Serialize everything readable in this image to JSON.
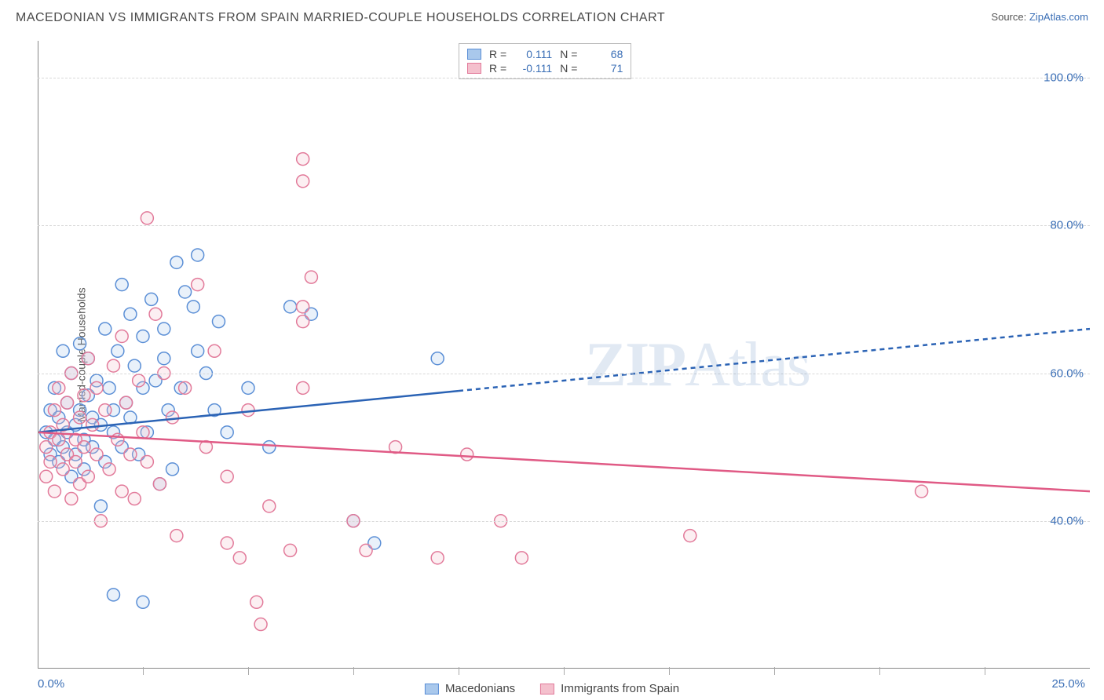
{
  "title": "MACEDONIAN VS IMMIGRANTS FROM SPAIN MARRIED-COUPLE HOUSEHOLDS CORRELATION CHART",
  "source_label": "Source:",
  "source_link": "ZipAtlas.com",
  "ylabel": "Married-couple Households",
  "watermark_bold": "ZIP",
  "watermark_light": "Atlas",
  "chart": {
    "type": "scatter",
    "xlim": [
      0,
      25
    ],
    "ylim": [
      20,
      105
    ],
    "x_ticks": [
      0,
      25
    ],
    "x_ticks_minor": [
      2.5,
      5,
      7.5,
      10,
      12.5,
      15,
      17.5,
      20,
      22.5
    ],
    "y_gridlines": [
      40,
      60,
      80,
      100
    ],
    "x_axis_suffix": "%",
    "y_axis_suffix": "%",
    "x_tick_labels": [
      "0.0%",
      "25.0%"
    ],
    "y_tick_labels": [
      "40.0%",
      "60.0%",
      "80.0%",
      "100.0%"
    ],
    "background_color": "#ffffff",
    "grid_color": "#d8d8d8",
    "axis_color": "#888888",
    "label_color": "#3b6fb6",
    "marker_radius": 8,
    "marker_stroke_width": 1.5,
    "marker_fill_opacity": 0.25,
    "trend_line_width": 2.5,
    "trend_dash_split_x": 10
  },
  "series": [
    {
      "name": "Macedonians",
      "color_fill": "#a9c8ec",
      "color_stroke": "#5b8fd6",
      "trend_color": "#2b63b5",
      "R": "0.111",
      "N": "68",
      "trend": {
        "x1": 0,
        "y1": 52,
        "x2": 25,
        "y2": 66
      },
      "points": [
        [
          0.2,
          52
        ],
        [
          0.3,
          49
        ],
        [
          0.3,
          55
        ],
        [
          0.4,
          51
        ],
        [
          0.4,
          58
        ],
        [
          0.5,
          48
        ],
        [
          0.5,
          54
        ],
        [
          0.6,
          50
        ],
        [
          0.6,
          63
        ],
        [
          0.7,
          52
        ],
        [
          0.7,
          56
        ],
        [
          0.8,
          46
        ],
        [
          0.8,
          60
        ],
        [
          0.9,
          53
        ],
        [
          0.9,
          49
        ],
        [
          1.0,
          55
        ],
        [
          1.0,
          64
        ],
        [
          1.1,
          51
        ],
        [
          1.1,
          47
        ],
        [
          1.2,
          57
        ],
        [
          1.2,
          62
        ],
        [
          1.3,
          54
        ],
        [
          1.3,
          50
        ],
        [
          1.4,
          59
        ],
        [
          1.5,
          53
        ],
        [
          1.5,
          42
        ],
        [
          1.6,
          66
        ],
        [
          1.6,
          48
        ],
        [
          1.7,
          58
        ],
        [
          1.8,
          55
        ],
        [
          1.8,
          52
        ],
        [
          1.9,
          63
        ],
        [
          2.0,
          50
        ],
        [
          2.0,
          72
        ],
        [
          2.1,
          56
        ],
        [
          2.2,
          68
        ],
        [
          2.2,
          54
        ],
        [
          2.3,
          61
        ],
        [
          2.4,
          49
        ],
        [
          2.5,
          65
        ],
        [
          2.5,
          58
        ],
        [
          2.6,
          52
        ],
        [
          2.7,
          70
        ],
        [
          2.8,
          59
        ],
        [
          2.9,
          45
        ],
        [
          3.0,
          66
        ],
        [
          3.0,
          62
        ],
        [
          3.1,
          55
        ],
        [
          3.2,
          47
        ],
        [
          3.3,
          75
        ],
        [
          3.4,
          58
        ],
        [
          3.5,
          71
        ],
        [
          3.7,
          69
        ],
        [
          3.8,
          63
        ],
        [
          3.8,
          76
        ],
        [
          4.0,
          60
        ],
        [
          4.2,
          55
        ],
        [
          4.3,
          67
        ],
        [
          4.5,
          52
        ],
        [
          5.0,
          58
        ],
        [
          5.5,
          50
        ],
        [
          6.0,
          69
        ],
        [
          6.5,
          68
        ],
        [
          7.5,
          40
        ],
        [
          8.0,
          37
        ],
        [
          9.5,
          62
        ],
        [
          1.8,
          30
        ],
        [
          2.5,
          29
        ]
      ]
    },
    {
      "name": "Immigrants from Spain",
      "color_fill": "#f4c0cd",
      "color_stroke": "#e27a9a",
      "trend_color": "#e05a85",
      "R": "-0.111",
      "N": "71",
      "trend": {
        "x1": 0,
        "y1": 52,
        "x2": 25,
        "y2": 44
      },
      "points": [
        [
          0.2,
          50
        ],
        [
          0.2,
          46
        ],
        [
          0.3,
          52
        ],
        [
          0.3,
          48
        ],
        [
          0.4,
          55
        ],
        [
          0.4,
          44
        ],
        [
          0.5,
          51
        ],
        [
          0.5,
          58
        ],
        [
          0.6,
          47
        ],
        [
          0.6,
          53
        ],
        [
          0.7,
          49
        ],
        [
          0.7,
          56
        ],
        [
          0.8,
          43
        ],
        [
          0.8,
          60
        ],
        [
          0.9,
          51
        ],
        [
          0.9,
          48
        ],
        [
          1.0,
          54
        ],
        [
          1.0,
          45
        ],
        [
          1.1,
          57
        ],
        [
          1.1,
          50
        ],
        [
          1.2,
          62
        ],
        [
          1.2,
          46
        ],
        [
          1.3,
          53
        ],
        [
          1.4,
          49
        ],
        [
          1.4,
          58
        ],
        [
          1.5,
          40
        ],
        [
          1.6,
          55
        ],
        [
          1.7,
          47
        ],
        [
          1.8,
          61
        ],
        [
          1.9,
          51
        ],
        [
          2.0,
          65
        ],
        [
          2.0,
          44
        ],
        [
          2.1,
          56
        ],
        [
          2.2,
          49
        ],
        [
          2.3,
          43
        ],
        [
          2.4,
          59
        ],
        [
          2.5,
          52
        ],
        [
          2.6,
          48
        ],
        [
          2.8,
          68
        ],
        [
          2.9,
          45
        ],
        [
          3.0,
          60
        ],
        [
          3.2,
          54
        ],
        [
          3.3,
          38
        ],
        [
          3.5,
          58
        ],
        [
          3.8,
          72
        ],
        [
          4.0,
          50
        ],
        [
          4.2,
          63
        ],
        [
          4.5,
          46
        ],
        [
          4.5,
          37
        ],
        [
          4.8,
          35
        ],
        [
          5.0,
          55
        ],
        [
          5.2,
          29
        ],
        [
          5.3,
          26
        ],
        [
          5.5,
          42
        ],
        [
          6.0,
          36
        ],
        [
          6.3,
          67
        ],
        [
          6.3,
          69
        ],
        [
          6.3,
          89
        ],
        [
          6.3,
          86
        ],
        [
          2.6,
          81
        ],
        [
          6.5,
          73
        ],
        [
          7.5,
          40
        ],
        [
          7.8,
          36
        ],
        [
          8.5,
          50
        ],
        [
          9.5,
          35
        ],
        [
          10.2,
          49
        ],
        [
          11.0,
          40
        ],
        [
          11.5,
          35
        ],
        [
          15.5,
          38
        ],
        [
          21.0,
          44
        ],
        [
          6.3,
          58
        ]
      ]
    }
  ],
  "correlation_box": {
    "rows": [
      {
        "series_idx": 0,
        "R_label": "R =",
        "N_label": "N ="
      },
      {
        "series_idx": 1,
        "R_label": "R =",
        "N_label": "N ="
      }
    ]
  },
  "legend_bottom": [
    {
      "series_idx": 0
    },
    {
      "series_idx": 1
    }
  ]
}
